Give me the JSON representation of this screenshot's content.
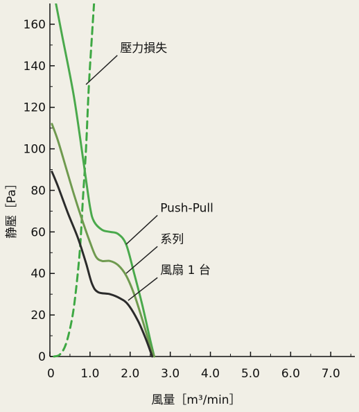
{
  "chart_data": {
    "type": "line",
    "xlabel": "風量［m³/min］",
    "ylabel": "静壓［Pa］",
    "xlim": [
      0,
      7.6
    ],
    "ylim": [
      0,
      170
    ],
    "x_ticks": [
      0,
      1.0,
      2.0,
      3.0,
      4.0,
      5.0,
      6.0,
      7.0
    ],
    "x_tick_labels": [
      "0",
      "1.0",
      "2.0",
      "3.0",
      "4.0",
      "5.0",
      "6.0",
      "7.0"
    ],
    "y_ticks": [
      0,
      20,
      40,
      60,
      80,
      100,
      120,
      140,
      160
    ],
    "y_tick_labels": [
      "0",
      "20",
      "40",
      "60",
      "80",
      "100",
      "120",
      "140",
      "160"
    ],
    "grid": false,
    "series": [
      {
        "name": "壓力損失",
        "color": "#3ea843",
        "dash": true,
        "points": [
          [
            0.1,
            0
          ],
          [
            0.25,
            1
          ],
          [
            0.4,
            6
          ],
          [
            0.55,
            18
          ],
          [
            0.65,
            32
          ],
          [
            0.75,
            52
          ],
          [
            0.82,
            75
          ],
          [
            0.9,
            100
          ],
          [
            0.97,
            130
          ],
          [
            1.05,
            155
          ],
          [
            1.1,
            170
          ]
        ]
      },
      {
        "name": "Push-Pull",
        "color": "#4aa94c",
        "dash": false,
        "points": [
          [
            0.15,
            170
          ],
          [
            0.3,
            155
          ],
          [
            0.6,
            125
          ],
          [
            0.85,
            92
          ],
          [
            1.0,
            72
          ],
          [
            1.1,
            65
          ],
          [
            1.3,
            61
          ],
          [
            1.5,
            60
          ],
          [
            1.7,
            59
          ],
          [
            1.9,
            54
          ],
          [
            2.1,
            40
          ],
          [
            2.3,
            25
          ],
          [
            2.5,
            8
          ],
          [
            2.6,
            0
          ]
        ]
      },
      {
        "name": "系列",
        "color": "#6f9a4f",
        "dash": false,
        "points": [
          [
            0.05,
            112
          ],
          [
            0.2,
            104
          ],
          [
            0.4,
            91
          ],
          [
            0.6,
            78
          ],
          [
            0.8,
            66
          ],
          [
            1.0,
            55
          ],
          [
            1.15,
            48
          ],
          [
            1.3,
            46
          ],
          [
            1.5,
            46
          ],
          [
            1.7,
            44
          ],
          [
            1.9,
            39
          ],
          [
            2.1,
            30
          ],
          [
            2.3,
            18
          ],
          [
            2.5,
            5
          ],
          [
            2.6,
            0
          ]
        ]
      },
      {
        "name": "風扇 1 台",
        "color": "#2b2b2b",
        "dash": false,
        "points": [
          [
            0.05,
            89
          ],
          [
            0.2,
            82
          ],
          [
            0.45,
            69
          ],
          [
            0.7,
            57
          ],
          [
            0.9,
            45
          ],
          [
            1.05,
            35
          ],
          [
            1.2,
            31
          ],
          [
            1.5,
            30
          ],
          [
            1.75,
            28
          ],
          [
            1.95,
            25
          ],
          [
            2.2,
            17
          ],
          [
            2.4,
            8
          ],
          [
            2.55,
            0
          ]
        ]
      }
    ],
    "annotations": [
      {
        "text": "壓力損失",
        "points_to": [
          0.9,
          131
        ],
        "label_at": [
          1.75,
          146
        ]
      },
      {
        "text": "Push-Pull",
        "points_to": [
          1.9,
          54
        ],
        "label_at": [
          2.75,
          69
        ]
      },
      {
        "text": "系列",
        "points_to": [
          1.9,
          40
        ],
        "label_at": [
          2.75,
          54
        ]
      },
      {
        "text": "風扇 1 台",
        "points_to": [
          1.95,
          27
        ],
        "label_at": [
          2.75,
          39
        ]
      }
    ]
  }
}
